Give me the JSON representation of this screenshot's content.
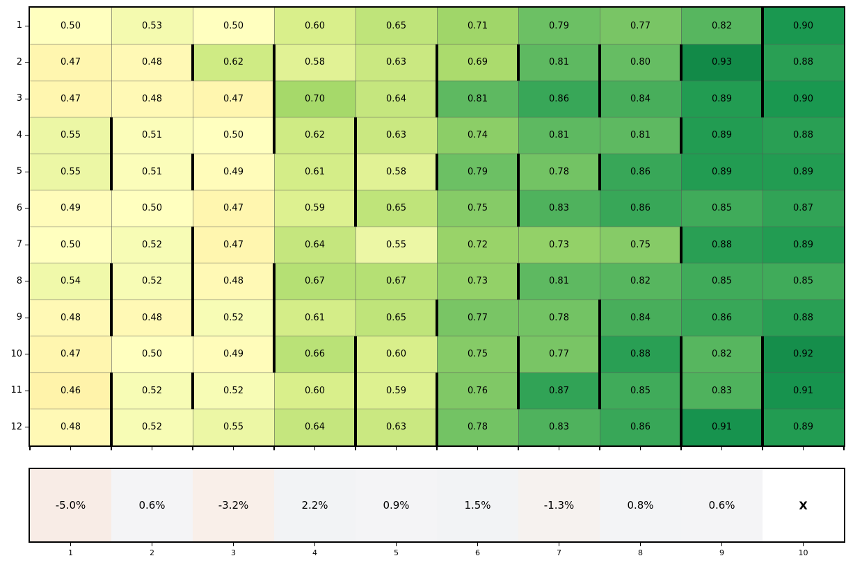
{
  "figure": {
    "background": "#ffffff",
    "text_color": "#000000",
    "gridline_color": "#555555",
    "bold_marker_color": "#000000"
  },
  "chart_data": {
    "type": "heatmap",
    "title": "",
    "xlabel": "",
    "ylabel": "",
    "y_tick_labels": [
      "1",
      "2",
      "3",
      "4",
      "5",
      "6",
      "7",
      "8",
      "9",
      "10",
      "11",
      "12"
    ],
    "x_tick_labels": [
      "1",
      "2",
      "3",
      "4",
      "5",
      "6",
      "7",
      "8",
      "9",
      "10"
    ],
    "value_format": "two_decimals",
    "colormap": "RdYlGn over [0,1]",
    "values": [
      [
        0.5,
        0.53,
        0.5,
        0.6,
        0.65,
        0.71,
        0.79,
        0.77,
        0.82,
        0.9
      ],
      [
        0.47,
        0.48,
        0.62,
        0.58,
        0.63,
        0.69,
        0.81,
        0.8,
        0.93,
        0.88
      ],
      [
        0.47,
        0.48,
        0.47,
        0.7,
        0.64,
        0.81,
        0.86,
        0.84,
        0.89,
        0.9
      ],
      [
        0.55,
        0.51,
        0.5,
        0.62,
        0.63,
        0.74,
        0.81,
        0.81,
        0.89,
        0.88
      ],
      [
        0.55,
        0.51,
        0.49,
        0.61,
        0.58,
        0.79,
        0.78,
        0.86,
        0.89,
        0.89
      ],
      [
        0.49,
        0.5,
        0.47,
        0.59,
        0.65,
        0.75,
        0.83,
        0.86,
        0.85,
        0.87
      ],
      [
        0.5,
        0.52,
        0.47,
        0.64,
        0.55,
        0.72,
        0.73,
        0.75,
        0.88,
        0.89
      ],
      [
        0.54,
        0.52,
        0.48,
        0.67,
        0.67,
        0.73,
        0.81,
        0.82,
        0.85,
        0.85
      ],
      [
        0.48,
        0.48,
        0.52,
        0.61,
        0.65,
        0.77,
        0.78,
        0.84,
        0.86,
        0.88
      ],
      [
        0.47,
        0.5,
        0.49,
        0.66,
        0.6,
        0.75,
        0.77,
        0.88,
        0.82,
        0.92
      ],
      [
        0.46,
        0.52,
        0.52,
        0.6,
        0.59,
        0.76,
        0.87,
        0.85,
        0.83,
        0.91
      ],
      [
        0.48,
        0.52,
        0.55,
        0.64,
        0.63,
        0.78,
        0.83,
        0.86,
        0.91,
        0.89
      ]
    ],
    "bold_left_borders": [
      [
        1,
        10
      ],
      [
        2,
        3
      ],
      [
        2,
        4
      ],
      [
        2,
        6
      ],
      [
        2,
        7
      ],
      [
        2,
        8
      ],
      [
        2,
        9
      ],
      [
        2,
        10
      ],
      [
        3,
        4
      ],
      [
        3,
        6
      ],
      [
        3,
        8
      ],
      [
        3,
        10
      ],
      [
        4,
        2
      ],
      [
        4,
        4
      ],
      [
        4,
        5
      ],
      [
        4,
        9
      ],
      [
        5,
        2
      ],
      [
        5,
        3
      ],
      [
        5,
        5
      ],
      [
        5,
        6
      ],
      [
        5,
        7
      ],
      [
        5,
        8
      ],
      [
        6,
        5
      ],
      [
        6,
        7
      ],
      [
        7,
        3
      ],
      [
        7,
        9
      ],
      [
        8,
        2
      ],
      [
        8,
        3
      ],
      [
        8,
        4
      ],
      [
        8,
        7
      ],
      [
        9,
        2
      ],
      [
        9,
        3
      ],
      [
        9,
        4
      ],
      [
        9,
        6
      ],
      [
        9,
        8
      ],
      [
        10,
        4
      ],
      [
        10,
        5
      ],
      [
        10,
        7
      ],
      [
        10,
        8
      ],
      [
        10,
        9
      ],
      [
        10,
        10
      ],
      [
        11,
        2
      ],
      [
        11,
        3
      ],
      [
        11,
        5
      ],
      [
        11,
        6
      ],
      [
        11,
        7
      ],
      [
        11,
        8
      ],
      [
        11,
        9
      ],
      [
        11,
        10
      ],
      [
        12,
        2
      ],
      [
        12,
        5
      ],
      [
        12,
        6
      ],
      [
        12,
        9
      ],
      [
        12,
        10
      ]
    ],
    "summary_row": {
      "labels": [
        "-5.0%",
        "0.6%",
        "-3.2%",
        "2.2%",
        "0.9%",
        "1.5%",
        "-1.3%",
        "0.8%",
        "0.6%",
        "X"
      ],
      "colors": [
        "#f8ece6",
        "#f4f4f6",
        "#f9efe9",
        "#f2f3f5",
        "#f4f4f6",
        "#f2f3f5",
        "#f6f2ef",
        "#f3f4f6",
        "#f4f4f6",
        "#ffffff"
      ]
    }
  }
}
